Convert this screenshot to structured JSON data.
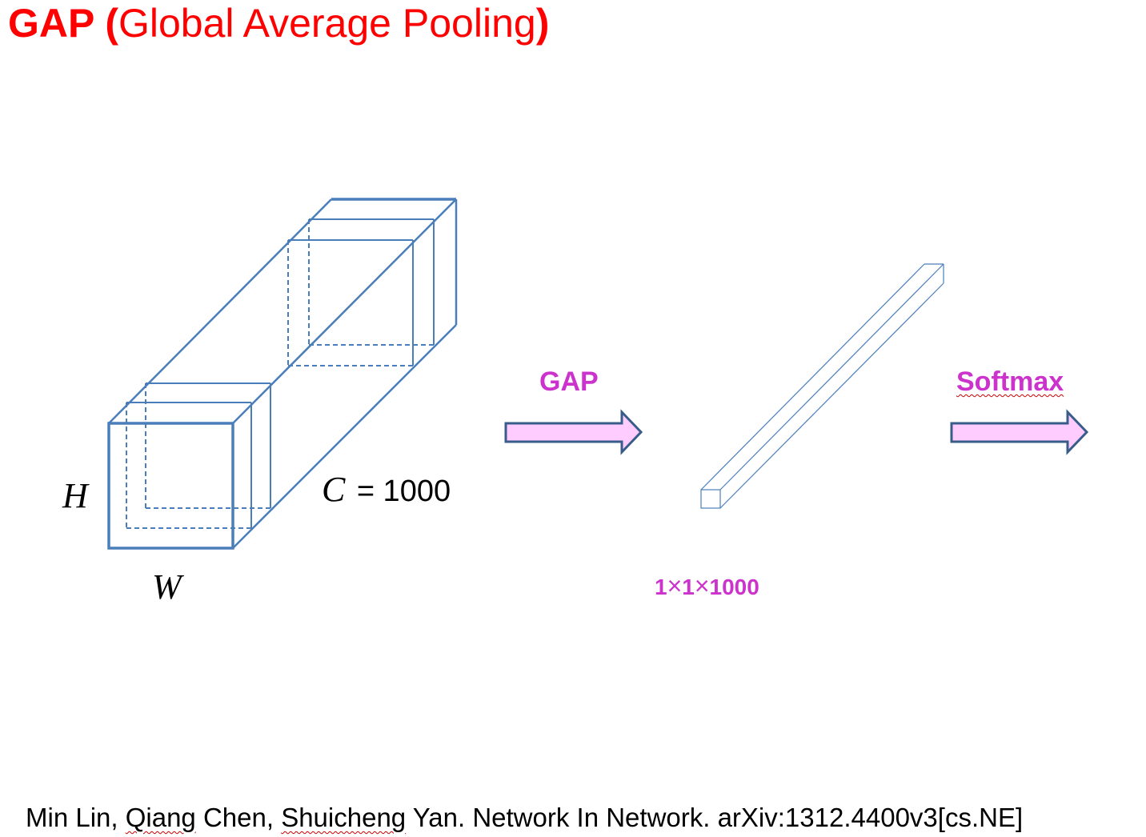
{
  "title": {
    "bold_text": "GAP (",
    "plain_text": "Global Average Pooling",
    "bold_close": ")"
  },
  "tensor": {
    "height_label": "H",
    "width_label": "W",
    "channel_label": "C",
    "channel_value": "= 1000"
  },
  "gap_arrow_label": "GAP",
  "output_shape": {
    "d1": "1",
    "d2": "1",
    "d3": "1000",
    "times": "×"
  },
  "softmax_arrow_label": "Softmax",
  "citation": {
    "a1": "Min Lin, ",
    "a2": "Qiang",
    "a3": " Chen, ",
    "a4": "Shuicheng",
    "a5": " Yan. Network In Network. arXiv:1312.4400v3[cs.NE]"
  },
  "colors": {
    "title": "#ff0000",
    "box_line": "#4a7ebb",
    "arrow_fill": "#ffccff",
    "arrow_stroke": "#385d8a",
    "accent": "#cc33cc"
  }
}
